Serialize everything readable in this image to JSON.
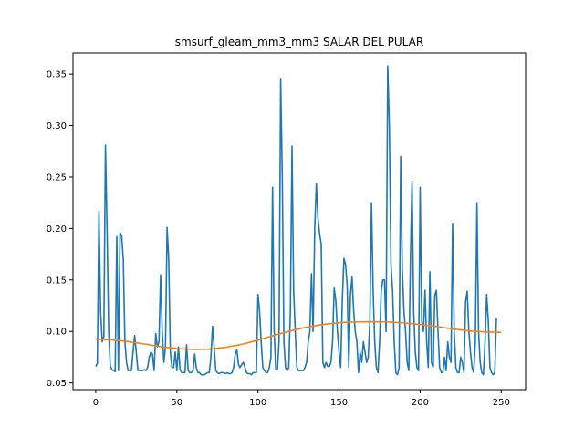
{
  "chart_data": {
    "type": "line",
    "title": "smsurf_gleam_mm3_mm3 SALAR DEL PULAR",
    "xlabel": "",
    "ylabel": "",
    "xlim": [
      -14,
      265
    ],
    "ylim": [
      0.0435,
      0.3705
    ],
    "x_ticks": [
      0,
      50,
      100,
      150,
      200,
      250
    ],
    "x_tick_labels": [
      "0",
      "50",
      "100",
      "150",
      "200",
      "250"
    ],
    "y_ticks": [
      0.05,
      0.1,
      0.15,
      0.2,
      0.25,
      0.3,
      0.35
    ],
    "y_tick_labels": [
      "0.05",
      "0.10",
      "0.15",
      "0.20",
      "0.25",
      "0.30",
      "0.35"
    ],
    "grid": false,
    "legend": "none",
    "series": [
      {
        "color": "#1f77b4",
        "points": [
          [
            0,
            0.066
          ],
          [
            1,
            0.069
          ],
          [
            2,
            0.217
          ],
          [
            3,
            0.12
          ],
          [
            4,
            0.09
          ],
          [
            5,
            0.095
          ],
          [
            6,
            0.281
          ],
          [
            7,
            0.2
          ],
          [
            8,
            0.1
          ],
          [
            9,
            0.066
          ],
          [
            10,
            0.063
          ],
          [
            11,
            0.062
          ],
          [
            12,
            0.061
          ],
          [
            13,
            0.192
          ],
          [
            14,
            0.062
          ],
          [
            15,
            0.196
          ],
          [
            16,
            0.193
          ],
          [
            17,
            0.17
          ],
          [
            18,
            0.09
          ],
          [
            19,
            0.07
          ],
          [
            20,
            0.062
          ],
          [
            21,
            0.062
          ],
          [
            22,
            0.062
          ],
          [
            23,
            0.08
          ],
          [
            24,
            0.096
          ],
          [
            25,
            0.08
          ],
          [
            26,
            0.062
          ],
          [
            27,
            0.062
          ],
          [
            28,
            0.062
          ],
          [
            29,
            0.062
          ],
          [
            30,
            0.063
          ],
          [
            31,
            0.062
          ],
          [
            32,
            0.065
          ],
          [
            33,
            0.075
          ],
          [
            34,
            0.08
          ],
          [
            35,
            0.078
          ],
          [
            36,
            0.062
          ],
          [
            37,
            0.098
          ],
          [
            38,
            0.085
          ],
          [
            39,
            0.09
          ],
          [
            40,
            0.155
          ],
          [
            41,
            0.1
          ],
          [
            42,
            0.07
          ],
          [
            43,
            0.085
          ],
          [
            44,
            0.201
          ],
          [
            45,
            0.17
          ],
          [
            46,
            0.08
          ],
          [
            47,
            0.065
          ],
          [
            48,
            0.065
          ],
          [
            49,
            0.08
          ],
          [
            50,
            0.062
          ],
          [
            51,
            0.085
          ],
          [
            52,
            0.063
          ],
          [
            53,
            0.06
          ],
          [
            54,
            0.06
          ],
          [
            55,
            0.06
          ],
          [
            56,
            0.087
          ],
          [
            57,
            0.062
          ],
          [
            58,
            0.06
          ],
          [
            59,
            0.06
          ],
          [
            60,
            0.062
          ],
          [
            61,
            0.078
          ],
          [
            62,
            0.065
          ],
          [
            63,
            0.06
          ],
          [
            64,
            0.06
          ],
          [
            65,
            0.058
          ],
          [
            66,
            0.058
          ],
          [
            67,
            0.058
          ],
          [
            68,
            0.059
          ],
          [
            69,
            0.06
          ],
          [
            70,
            0.06
          ],
          [
            71,
            0.075
          ],
          [
            72,
            0.105
          ],
          [
            73,
            0.085
          ],
          [
            74,
            0.062
          ],
          [
            75,
            0.06
          ],
          [
            76,
            0.059
          ],
          [
            77,
            0.06
          ],
          [
            78,
            0.06
          ],
          [
            79,
            0.06
          ],
          [
            80,
            0.059
          ],
          [
            81,
            0.06
          ],
          [
            82,
            0.059
          ],
          [
            83,
            0.059
          ],
          [
            84,
            0.06
          ],
          [
            85,
            0.065
          ],
          [
            86,
            0.078
          ],
          [
            87,
            0.082
          ],
          [
            88,
            0.068
          ],
          [
            89,
            0.065
          ],
          [
            90,
            0.068
          ],
          [
            91,
            0.07
          ],
          [
            92,
            0.065
          ],
          [
            93,
            0.06
          ],
          [
            94,
            0.059
          ],
          [
            95,
            0.059
          ],
          [
            96,
            0.058
          ],
          [
            97,
            0.06
          ],
          [
            98,
            0.06
          ],
          [
            99,
            0.06
          ],
          [
            100,
            0.136
          ],
          [
            101,
            0.12
          ],
          [
            102,
            0.09
          ],
          [
            103,
            0.065
          ],
          [
            104,
            0.062
          ],
          [
            105,
            0.06
          ],
          [
            106,
            0.06
          ],
          [
            107,
            0.065
          ],
          [
            108,
            0.075
          ],
          [
            109,
            0.24
          ],
          [
            110,
            0.1
          ],
          [
            111,
            0.063
          ],
          [
            112,
            0.063
          ],
          [
            113,
            0.09
          ],
          [
            114,
            0.345
          ],
          [
            115,
            0.25
          ],
          [
            116,
            0.09
          ],
          [
            117,
            0.065
          ],
          [
            118,
            0.062
          ],
          [
            119,
            0.065
          ],
          [
            120,
            0.12
          ],
          [
            121,
            0.28
          ],
          [
            122,
            0.14
          ],
          [
            123,
            0.1
          ],
          [
            124,
            0.065
          ],
          [
            125,
            0.062
          ],
          [
            126,
            0.062
          ],
          [
            127,
            0.062
          ],
          [
            128,
            0.062
          ],
          [
            129,
            0.065
          ],
          [
            130,
            0.07
          ],
          [
            131,
            0.09
          ],
          [
            132,
            0.1
          ],
          [
            133,
            0.156
          ],
          [
            134,
            0.1
          ],
          [
            135,
            0.2
          ],
          [
            136,
            0.244
          ],
          [
            137,
            0.21
          ],
          [
            138,
            0.195
          ],
          [
            139,
            0.185
          ],
          [
            140,
            0.07
          ],
          [
            141,
            0.065
          ],
          [
            142,
            0.07
          ],
          [
            143,
            0.066
          ],
          [
            144,
            0.066
          ],
          [
            145,
            0.07
          ],
          [
            146,
            0.09
          ],
          [
            147,
            0.142
          ],
          [
            148,
            0.13
          ],
          [
            149,
            0.1
          ],
          [
            150,
            0.08
          ],
          [
            151,
            0.065
          ],
          [
            152,
            0.13
          ],
          [
            153,
            0.171
          ],
          [
            154,
            0.165
          ],
          [
            155,
            0.145
          ],
          [
            156,
            0.065
          ],
          [
            157,
            0.135
          ],
          [
            158,
            0.153
          ],
          [
            159,
            0.12
          ],
          [
            160,
            0.1
          ],
          [
            161,
            0.09
          ],
          [
            162,
            0.06
          ],
          [
            163,
            0.08
          ],
          [
            164,
            0.07
          ],
          [
            165,
            0.09
          ],
          [
            166,
            0.08
          ],
          [
            167,
            0.07
          ],
          [
            168,
            0.075
          ],
          [
            169,
            0.11
          ],
          [
            170,
            0.225
          ],
          [
            171,
            0.14
          ],
          [
            172,
            0.09
          ],
          [
            173,
            0.065
          ],
          [
            174,
            0.06
          ],
          [
            175,
            0.09
          ],
          [
            176,
            0.14
          ],
          [
            177,
            0.15
          ],
          [
            178,
            0.15
          ],
          [
            179,
            0.1
          ],
          [
            180,
            0.358
          ],
          [
            181,
            0.3
          ],
          [
            182,
            0.165
          ],
          [
            183,
            0.14
          ],
          [
            184,
            0.09
          ],
          [
            185,
            0.06
          ],
          [
            186,
            0.058
          ],
          [
            187,
            0.065
          ],
          [
            188,
            0.27
          ],
          [
            189,
            0.16
          ],
          [
            190,
            0.12
          ],
          [
            191,
            0.1
          ],
          [
            192,
            0.07
          ],
          [
            193,
            0.062
          ],
          [
            194,
            0.17
          ],
          [
            195,
            0.246
          ],
          [
            196,
            0.12
          ],
          [
            197,
            0.08
          ],
          [
            198,
            0.065
          ],
          [
            199,
            0.062
          ],
          [
            200,
            0.24
          ],
          [
            201,
            0.11
          ],
          [
            202,
            0.1
          ],
          [
            203,
            0.14
          ],
          [
            204,
            0.09
          ],
          [
            205,
            0.065
          ],
          [
            206,
            0.158
          ],
          [
            207,
            0.07
          ],
          [
            208,
            0.065
          ],
          [
            209,
            0.135
          ],
          [
            210,
            0.14
          ],
          [
            211,
            0.1
          ],
          [
            212,
            0.065
          ],
          [
            213,
            0.06
          ],
          [
            214,
            0.06
          ],
          [
            215,
            0.075
          ],
          [
            216,
            0.062
          ],
          [
            217,
            0.09
          ],
          [
            218,
            0.075
          ],
          [
            219,
            0.07
          ],
          [
            220,
            0.205
          ],
          [
            221,
            0.1
          ],
          [
            222,
            0.065
          ],
          [
            223,
            0.06
          ],
          [
            224,
            0.06
          ],
          [
            225,
            0.075
          ],
          [
            226,
            0.07
          ],
          [
            227,
            0.06
          ],
          [
            228,
            0.129
          ],
          [
            229,
            0.139
          ],
          [
            230,
            0.1
          ],
          [
            231,
            0.08
          ],
          [
            232,
            0.065
          ],
          [
            233,
            0.06
          ],
          [
            234,
            0.09
          ],
          [
            235,
            0.225
          ],
          [
            236,
            0.1
          ],
          [
            237,
            0.07
          ],
          [
            238,
            0.06
          ],
          [
            239,
            0.058
          ],
          [
            240,
            0.09
          ],
          [
            241,
            0.136
          ],
          [
            242,
            0.11
          ],
          [
            243,
            0.065
          ],
          [
            244,
            0.06
          ],
          [
            245,
            0.058
          ],
          [
            246,
            0.06
          ],
          [
            247,
            0.113
          ]
        ]
      },
      {
        "color": "#ff7f0e",
        "points": [
          [
            0,
            0.0925
          ],
          [
            10,
            0.0918
          ],
          [
            20,
            0.0902
          ],
          [
            30,
            0.0878
          ],
          [
            40,
            0.0852
          ],
          [
            50,
            0.0834
          ],
          [
            60,
            0.0825
          ],
          [
            70,
            0.0828
          ],
          [
            80,
            0.0845
          ],
          [
            90,
            0.0875
          ],
          [
            100,
            0.0915
          ],
          [
            110,
            0.0962
          ],
          [
            120,
            0.1005
          ],
          [
            130,
            0.1042
          ],
          [
            140,
            0.1068
          ],
          [
            150,
            0.1085
          ],
          [
            160,
            0.1093
          ],
          [
            170,
            0.1095
          ],
          [
            180,
            0.1092
          ],
          [
            190,
            0.1083
          ],
          [
            200,
            0.1068
          ],
          [
            210,
            0.1048
          ],
          [
            220,
            0.1025
          ],
          [
            230,
            0.1005
          ],
          [
            240,
            0.0995
          ],
          [
            250,
            0.0992
          ]
        ]
      }
    ]
  }
}
